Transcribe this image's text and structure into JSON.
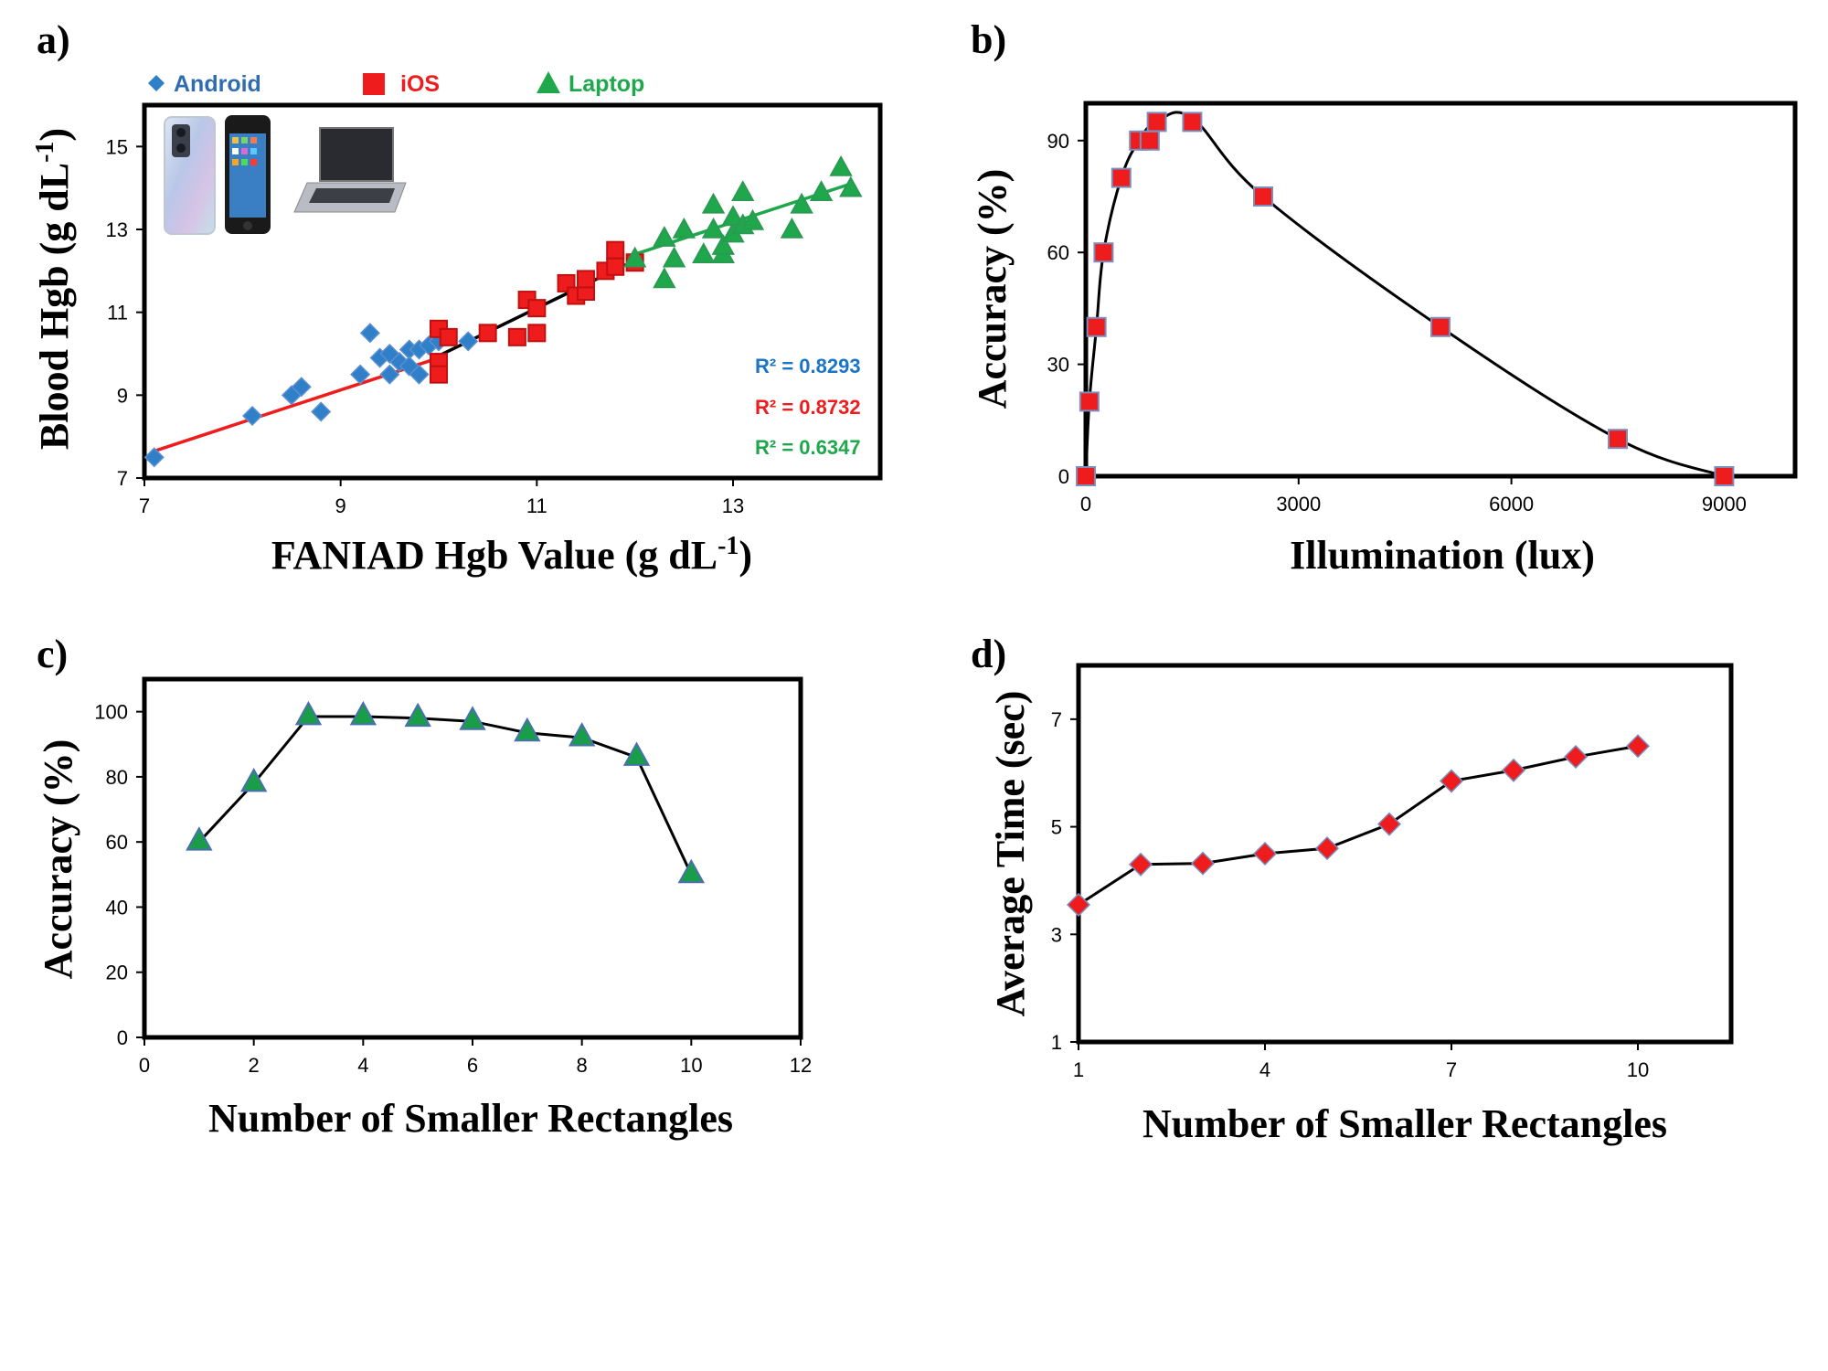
{
  "colors": {
    "android": "#2f7fc9",
    "ios": "#ee1c1c",
    "laptop": "#1fa84b",
    "android_text": "#2f6db0",
    "r2_android": "#1a75c7",
    "r2_ios": "#ee1c1c",
    "r2_laptop": "#1fa84b",
    "marker_edge_red": "#7a8fc0",
    "marker_edge_green": "#4a6fb0",
    "laptop_marker_b": "#1a9d48"
  },
  "icons": [
    "android-phone-icon",
    "iphone-icon",
    "laptop-icon"
  ],
  "chart_data": [
    {
      "panel": "a)",
      "type": "scatter",
      "xlabel": "FANIAD Hgb Value (g dL",
      "xlabel_sup": "-1",
      "xlabel_end": ")",
      "ylabel": "Blood Hgb (g dL",
      "ylabel_sup": "-1",
      "ylabel_end": ")",
      "xlim": [
        7,
        14.5
      ],
      "ylim": [
        7,
        16
      ],
      "xticks": [
        7,
        9,
        11,
        13
      ],
      "yticks": [
        7,
        9,
        11,
        13,
        15
      ],
      "legend": [
        "Android",
        "iOS",
        "Laptop"
      ],
      "r2": [
        "R² = 0.8293",
        "R² = 0.8732",
        "R² = 0.6347"
      ],
      "series": [
        {
          "name": "Android",
          "marker": "diamond",
          "points": [
            [
              7.1,
              7.5
            ],
            [
              8.1,
              8.5
            ],
            [
              8.5,
              9.0
            ],
            [
              8.6,
              9.2
            ],
            [
              8.8,
              8.6
            ],
            [
              9.2,
              9.5
            ],
            [
              9.3,
              10.5
            ],
            [
              9.4,
              9.9
            ],
            [
              9.5,
              10.0
            ],
            [
              9.5,
              9.5
            ],
            [
              9.6,
              9.8
            ],
            [
              9.7,
              10.1
            ],
            [
              9.7,
              9.7
            ],
            [
              9.8,
              9.5
            ],
            [
              9.8,
              10.1
            ],
            [
              9.9,
              10.2
            ],
            [
              10.0,
              10.3
            ],
            [
              10.3,
              10.3
            ]
          ],
          "trend": [
            [
              7.1,
              7.65
            ],
            [
              10.0,
              9.9
            ]
          ]
        },
        {
          "name": "iOS",
          "marker": "square",
          "points": [
            [
              10.0,
              10.6
            ],
            [
              10.0,
              9.8
            ],
            [
              10.0,
              9.5
            ],
            [
              10.1,
              10.4
            ],
            [
              10.5,
              10.5
            ],
            [
              10.8,
              10.4
            ],
            [
              10.9,
              11.3
            ],
            [
              11.0,
              11.1
            ],
            [
              11.0,
              10.5
            ],
            [
              11.3,
              11.7
            ],
            [
              11.4,
              11.4
            ],
            [
              11.5,
              11.5
            ],
            [
              11.5,
              11.8
            ],
            [
              11.7,
              12.0
            ],
            [
              11.8,
              12.5
            ],
            [
              11.8,
              12.1
            ],
            [
              12.0,
              12.2
            ]
          ],
          "trend": [
            [
              10.0,
              9.95
            ],
            [
              12.0,
              12.25
            ]
          ]
        },
        {
          "name": "Laptop",
          "marker": "triangle",
          "points": [
            [
              12.0,
              12.3
            ],
            [
              12.3,
              12.8
            ],
            [
              12.3,
              11.8
            ],
            [
              12.4,
              12.3
            ],
            [
              12.5,
              13.0
            ],
            [
              12.7,
              12.4
            ],
            [
              12.8,
              13.6
            ],
            [
              12.8,
              13.0
            ],
            [
              12.9,
              12.4
            ],
            [
              12.9,
              12.6
            ],
            [
              13.0,
              12.9
            ],
            [
              13.0,
              13.3
            ],
            [
              13.1,
              13.1
            ],
            [
              13.1,
              13.9
            ],
            [
              13.2,
              13.2
            ],
            [
              13.6,
              13.0
            ],
            [
              13.7,
              13.6
            ],
            [
              13.9,
              13.9
            ],
            [
              14.1,
              14.5
            ],
            [
              14.2,
              14.0
            ]
          ],
          "trend": [
            [
              12.0,
              12.4
            ],
            [
              14.2,
              14.1
            ]
          ]
        }
      ]
    },
    {
      "panel": "b)",
      "type": "scatter",
      "xlabel": "Illumination (lux)",
      "ylabel": "Accuracy (%)",
      "xlim": [
        0,
        10000
      ],
      "ylim": [
        0,
        100
      ],
      "xticks": [
        0,
        3000,
        6000,
        9000
      ],
      "yticks": [
        0,
        30,
        60,
        90
      ],
      "points": [
        [
          0,
          0
        ],
        [
          50,
          20
        ],
        [
          150,
          40
        ],
        [
          250,
          60
        ],
        [
          500,
          80
        ],
        [
          750,
          90
        ],
        [
          900,
          90
        ],
        [
          1000,
          95
        ],
        [
          1500,
          95
        ],
        [
          2500,
          75
        ],
        [
          5000,
          40
        ],
        [
          7500,
          10
        ],
        [
          9000,
          0
        ]
      ],
      "curve": [
        [
          0,
          0
        ],
        [
          50,
          20
        ],
        [
          150,
          40
        ],
        [
          250,
          60
        ],
        [
          500,
          80
        ],
        [
          750,
          90
        ],
        [
          1000,
          95
        ],
        [
          1500,
          96
        ],
        [
          2500,
          75
        ],
        [
          5000,
          40
        ],
        [
          7500,
          10
        ],
        [
          9000,
          0
        ]
      ]
    },
    {
      "panel": "c)",
      "type": "line",
      "xlabel": "Number of Smaller Rectangles",
      "ylabel": "Accuracy (%)",
      "xlim": [
        0,
        12
      ],
      "ylim": [
        0,
        110
      ],
      "xticks": [
        0,
        2,
        4,
        6,
        8,
        10,
        12
      ],
      "yticks": [
        0,
        20,
        40,
        60,
        80,
        100
      ],
      "x": [
        1,
        2,
        3,
        4,
        5,
        6,
        7,
        8,
        9,
        10
      ],
      "y": [
        60,
        78,
        98.5,
        98.5,
        98,
        97,
        93.5,
        92,
        86,
        50
      ]
    },
    {
      "panel": "d)",
      "type": "line",
      "xlabel": "Number of Smaller Rectangles",
      "ylabel": "Average Time (sec)",
      "xlim": [
        1,
        11.5
      ],
      "ylim": [
        1,
        8
      ],
      "xticks": [
        1,
        4,
        7,
        10
      ],
      "yticks": [
        1,
        3,
        5,
        7
      ],
      "x": [
        1,
        2,
        3,
        4,
        5,
        6,
        7,
        8,
        9,
        10
      ],
      "y": [
        3.55,
        4.3,
        4.32,
        4.5,
        4.6,
        5.05,
        5.85,
        6.05,
        6.3,
        6.5
      ]
    }
  ]
}
